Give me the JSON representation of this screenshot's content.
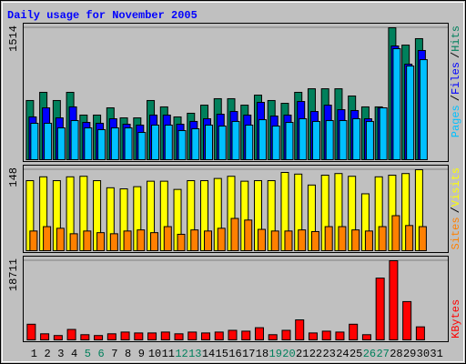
{
  "chart_data": [
    {
      "type": "bar",
      "title": "Daily usage for November 2005",
      "title_color": "#0000ff",
      "ylim": [
        0,
        1514
      ],
      "yticks": [
        1514
      ],
      "legend_separator": "/",
      "series": [
        {
          "name": "Hits",
          "color": "#00805c",
          "values": [
            679,
            773,
            679,
            773,
            512,
            512,
            595,
            480,
            480,
            679,
            606,
            491,
            533,
            626,
            700,
            700,
            626,
            741,
            679,
            647,
            773,
            814,
            814,
            814,
            731,
            606,
            606,
            1514,
            1315,
            1389,
            0
          ]
        },
        {
          "name": "Files",
          "color": "#0000ff",
          "values": [
            491,
            595,
            480,
            606,
            428,
            418,
            470,
            407,
            397,
            512,
            512,
            407,
            439,
            470,
            522,
            553,
            512,
            658,
            501,
            512,
            668,
            553,
            626,
            574,
            564,
            470,
            595,
            1305,
            1096,
            1253,
            0
          ]
        },
        {
          "name": "Pages",
          "color": "#00c0ff",
          "values": [
            418,
            418,
            365,
            449,
            365,
            345,
            365,
            365,
            313,
            397,
            397,
            334,
            355,
            397,
            386,
            439,
            397,
            459,
            386,
            428,
            470,
            439,
            449,
            449,
            470,
            439,
            595,
            1274,
            1075,
            1148,
            0
          ]
        }
      ]
    },
    {
      "type": "bar",
      "ylim": [
        0,
        148
      ],
      "yticks": [
        148
      ],
      "legend_separator": "/",
      "series": [
        {
          "name": "Visits",
          "color": "#ffff00",
          "values": [
            128,
            135,
            128,
            135,
            136,
            128,
            115,
            113,
            117,
            127,
            127,
            112,
            128,
            128,
            132,
            136,
            127,
            128,
            128,
            143,
            140,
            120,
            138,
            141,
            136,
            104,
            135,
            138,
            141,
            148,
            0
          ]
        },
        {
          "name": "Sites",
          "color": "#ff8000",
          "values": [
            36,
            44,
            41,
            31,
            36,
            33,
            31,
            36,
            38,
            33,
            44,
            30,
            38,
            36,
            41,
            59,
            56,
            39,
            36,
            36,
            38,
            35,
            44,
            44,
            38,
            36,
            44,
            64,
            46,
            44,
            0
          ]
        }
      ]
    },
    {
      "type": "bar",
      "ylim": [
        0,
        18711
      ],
      "yticks": [
        18711
      ],
      "categories": [
        "1",
        "2",
        "3",
        "4",
        "5",
        "6",
        "7",
        "8",
        "9",
        "10",
        "11",
        "12",
        "13",
        "14",
        "15",
        "16",
        "17",
        "18",
        "19",
        "20",
        "21",
        "22",
        "23",
        "24",
        "25",
        "26",
        "27",
        "28",
        "29",
        "30",
        "31"
      ],
      "category_colors": [
        "#000000",
        "#000000",
        "#000000",
        "#000000",
        "#00805c",
        "#00805c",
        "#000000",
        "#000000",
        "#000000",
        "#000000",
        "#000000",
        "#00805c",
        "#00805c",
        "#000000",
        "#000000",
        "#000000",
        "#000000",
        "#000000",
        "#00805c",
        "#00805c",
        "#000000",
        "#000000",
        "#000000",
        "#000000",
        "#000000",
        "#00805c",
        "#00805c",
        "#000000",
        "#000000",
        "#000000",
        "#000000"
      ],
      "series": [
        {
          "name": "KBytes",
          "color": "#ff0000",
          "values": [
            3700,
            1440,
            1030,
            2470,
            1230,
            1030,
            1440,
            1850,
            1640,
            1640,
            1850,
            1440,
            1850,
            1640,
            1850,
            2260,
            2060,
            2880,
            1230,
            2260,
            4730,
            1640,
            2060,
            1850,
            3700,
            1230,
            14600,
            18711,
            9050,
            3080,
            0
          ]
        }
      ]
    }
  ]
}
